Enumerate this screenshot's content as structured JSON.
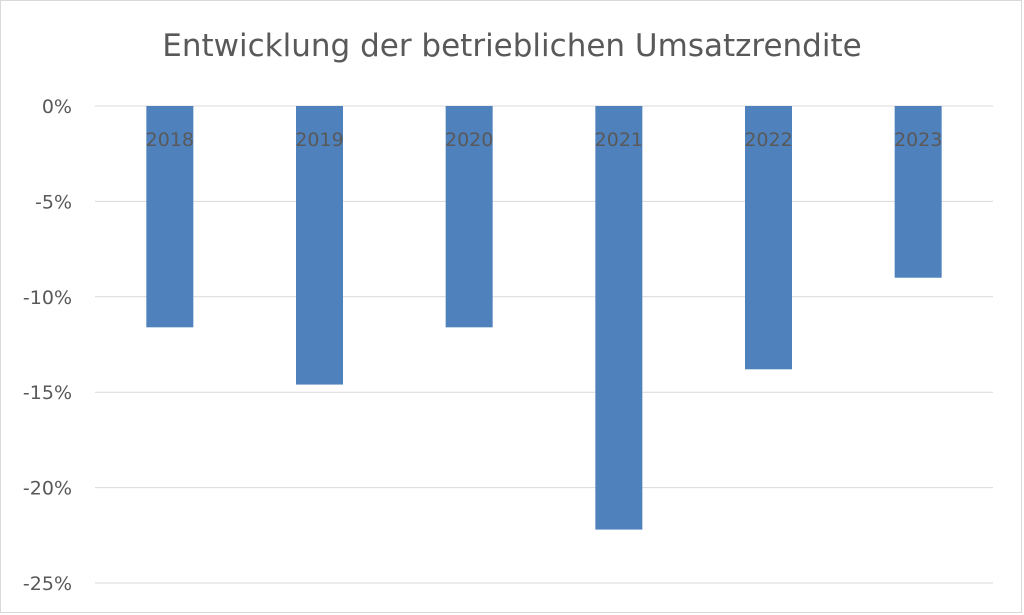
{
  "chart_data": {
    "type": "bar",
    "title": "Entwicklung der betrieblichen Umsatzrendite",
    "categories": [
      "2018",
      "2019",
      "2020",
      "2021",
      "2022",
      "2023"
    ],
    "values": [
      -11.6,
      -14.6,
      -11.6,
      -22.2,
      -13.8,
      -9.0
    ],
    "yticks": [
      "0%",
      "-5%",
      "-10%",
      "-15%",
      "-20%",
      "-25%"
    ],
    "ylim": [
      -25,
      0
    ],
    "bar_color": "#4f81bd",
    "grid": true,
    "legend": "none"
  }
}
